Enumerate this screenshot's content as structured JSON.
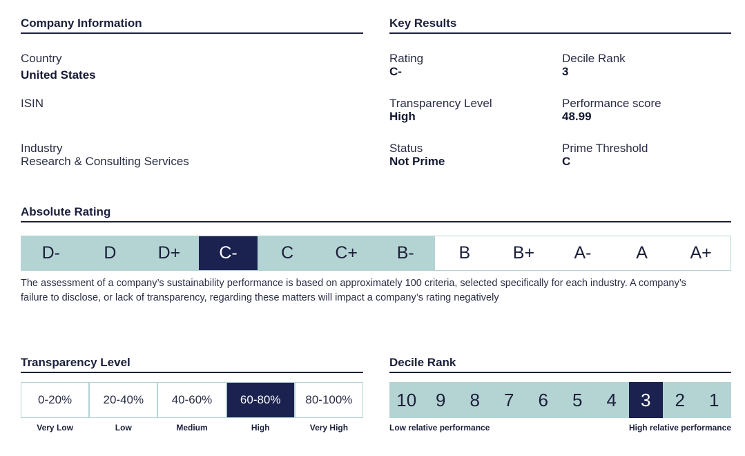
{
  "company_info": {
    "title": "Company Information",
    "country_label": "Country",
    "country_value": "United States",
    "isin_label": "ISIN",
    "industry_label": "Industry",
    "industry_value": "Research & Consulting Services"
  },
  "key_results": {
    "title": "Key Results",
    "rating_label": "Rating",
    "rating_value": "C-",
    "decile_label": "Decile Rank",
    "decile_value": "3",
    "transparency_label": "Transparency Level",
    "transparency_value": "High",
    "performance_label": "Performance score",
    "performance_value": "48.99",
    "status_label": "Status",
    "status_value": "Not Prime",
    "threshold_label": "Prime Threshold",
    "threshold_value": "C"
  },
  "absolute_rating": {
    "title": "Absolute Rating",
    "grades": [
      "D-",
      "D",
      "D+",
      "C-",
      "C",
      "C+",
      "B-",
      "B",
      "B+",
      "A-",
      "A",
      "A+"
    ],
    "active_index": 3,
    "description": "The assessment of a company’s sustainability performance is based on approximately 100 criteria, selected specifically for each industry. A company’s failure to disclose, or lack of transparency, regarding these matters will impact a company’s rating negatively"
  },
  "transparency_level": {
    "title": "Transparency Level",
    "ranges": [
      "0-20%",
      "20-40%",
      "40-60%",
      "60-80%",
      "80-100%"
    ],
    "labels": [
      "Very Low",
      "Low",
      "Medium",
      "High",
      "Very High"
    ],
    "active_index": 3
  },
  "decile_rank": {
    "title": "Decile Rank",
    "values": [
      "10",
      "9",
      "8",
      "7",
      "6",
      "5",
      "4",
      "3",
      "2",
      "1"
    ],
    "active_index": 7,
    "low_label": "Low relative performance",
    "high_label": "High relative performance"
  },
  "colors": {
    "navy": "#1b2250",
    "teal": "#b4d3d3"
  }
}
